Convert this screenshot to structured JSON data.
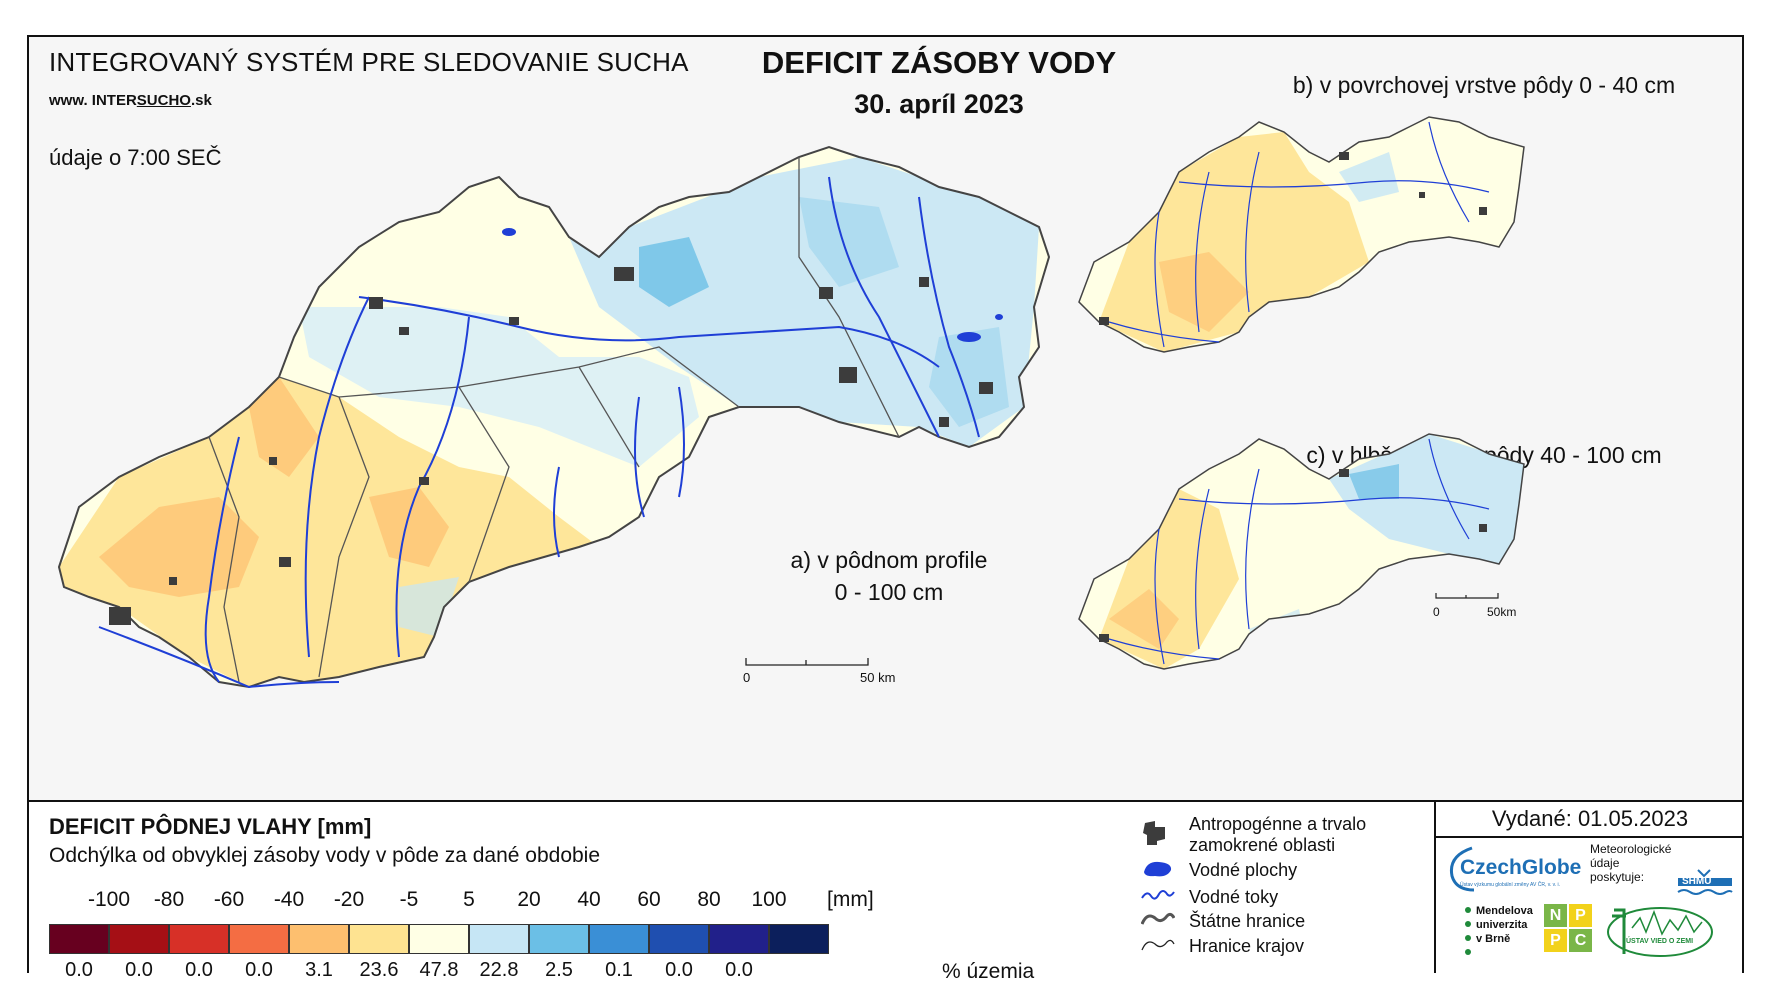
{
  "header": {
    "system_title": "INTEGROVANÝ SYSTÉM PRE SLEDOVANIE SUCHA",
    "website_prefix": "www. ",
    "website_logo_a": "INTER",
    "website_logo_b": "SUCHO",
    "website_suffix": ".sk",
    "data_time": "údaje o 7:00 SEČ",
    "main_title": "DEFICIT ZÁSOBY VODY",
    "date": "30. apríl 2023"
  },
  "maps": {
    "a_label_line1": "a) v pôdnom profile",
    "a_label_line2": "0 - 100 cm",
    "b_label": "b) v povrchovej vrstve pôdy 0 - 40 cm",
    "c_label": "c) v hlbšej vrstve pôdy 40 - 100 cm",
    "scale_main_start": "0",
    "scale_main_end": "50 km",
    "scale_small_start": "0",
    "scale_small_end": "50km"
  },
  "legend": {
    "title": "DEFICIT PÔDNEJ VLAHY [mm]",
    "subtitle": "Odchýlka od obvyklej zásoby vody v pôde za dané obdobie",
    "unit": "[mm]",
    "percent_label": "% územia",
    "ticks": [
      "-100",
      "-80",
      "-60",
      "-40",
      "-20",
      "-5",
      "5",
      "20",
      "40",
      "60",
      "80",
      "100"
    ],
    "classes": [
      {
        "color": "#67001f",
        "percent": "0.0"
      },
      {
        "color": "#a50f15",
        "percent": "0.0"
      },
      {
        "color": "#d73027",
        "percent": "0.0"
      },
      {
        "color": "#f46d43",
        "percent": "0.0"
      },
      {
        "color": "#fdbf6f",
        "percent": "3.1"
      },
      {
        "color": "#fee391",
        "percent": "23.6"
      },
      {
        "color": "#ffffe5",
        "percent": "47.8"
      },
      {
        "color": "#c6e6f5",
        "percent": "22.8"
      },
      {
        "color": "#6bbfe6",
        "percent": "2.5"
      },
      {
        "color": "#3a8fd6",
        "percent": "0.1"
      },
      {
        "color": "#1f4fb0",
        "percent": "0.0"
      },
      {
        "color": "#21208a",
        "percent": "0.0"
      },
      {
        "color": "#0c1f5c"
      }
    ]
  },
  "symbols": [
    {
      "icon": "urban-area-icon",
      "label_line1": "Antropogénne a trvalo",
      "label_line2": "zamokrené oblasti"
    },
    {
      "icon": "water-body-icon",
      "label_line1": "Vodné plochy"
    },
    {
      "icon": "river-icon",
      "label_line1": "Vodné toky"
    },
    {
      "icon": "state-border-icon",
      "label_line1": "Štátne hranice"
    },
    {
      "icon": "region-border-icon",
      "label_line1": "Hranice krajov"
    }
  ],
  "issue": {
    "issued": "Vydané: 01.05.2023",
    "czechglobe": "CzechGlobe",
    "czechglobe_sub": "Ústav výzkumu globální změny AV ČR, v. v. i.",
    "met_data_line1": "Meteorologické",
    "met_data_line2": "údaje",
    "met_data_line3": "poskytuje:",
    "shmu": "SHMÚ",
    "mendel_1": "Mendelova",
    "mendel_2": "univerzita",
    "mendel_3": "v Brně",
    "nppc_n": "N",
    "nppc_p1": "P",
    "nppc_p2": "P",
    "nppc_c": "C",
    "uvz": "ÚSTAV VIED O ZEMI"
  },
  "colors": {
    "frame": "#111111",
    "river": "#1f3fd6",
    "urban": "#3c3c3c",
    "czechglobe_blue": "#1e6fb5",
    "nppc_green": "#7ab648",
    "nppc_yellow": "#f2d21b",
    "uvz_green": "#1f8a3a"
  }
}
